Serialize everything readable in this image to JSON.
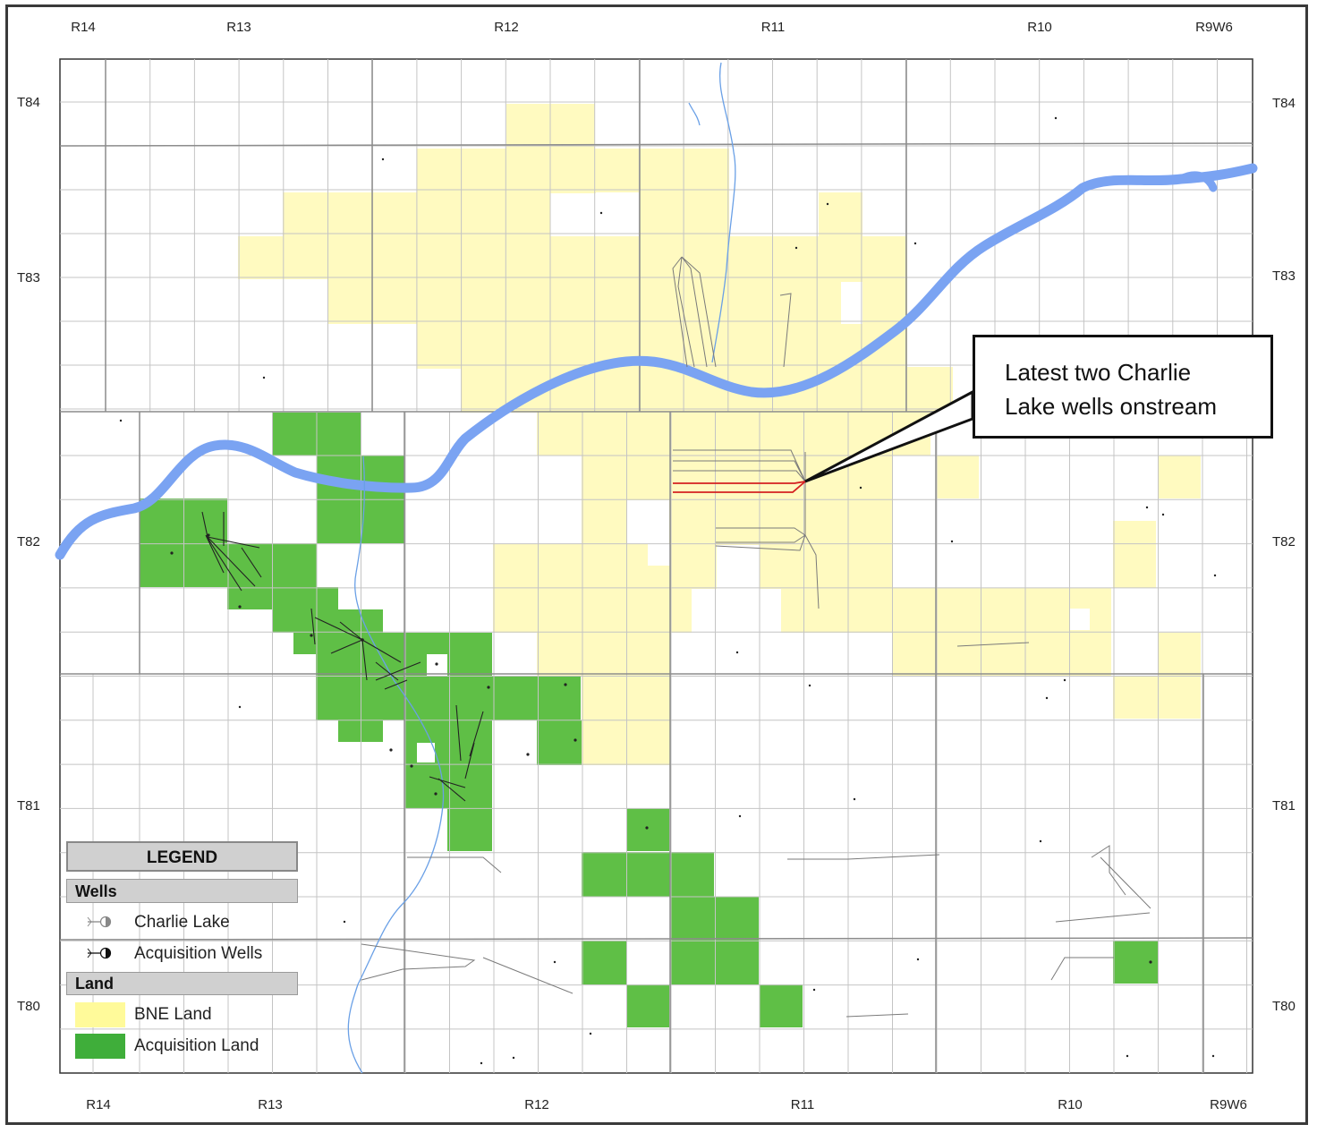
{
  "range_labels_top": [
    "R14",
    "R13",
    "R12",
    "R11",
    "R10",
    "R9W6"
  ],
  "range_labels_bottom": [
    "R14",
    "R13",
    "R12",
    "R11",
    "R10",
    "R9W6"
  ],
  "township_labels_left": [
    "T84",
    "T83",
    "T82",
    "T81",
    "T80"
  ],
  "township_labels_right": [
    "T84",
    "T83",
    "T82",
    "T81",
    "T80"
  ],
  "callout": {
    "line1": "Latest two Charlie",
    "line2": "Lake wells onstream"
  },
  "legend": {
    "title": "LEGEND",
    "wells_header": "Wells",
    "charlie_lake": "Charlie Lake",
    "acquisition_wells": "Acquisition Wells",
    "land_header": "Land",
    "bne_land": "BNE Land",
    "acquisition_land": "Acquisition Land"
  },
  "colors": {
    "bne_land": "#fffac0",
    "acquisition_land": "#5fbf46",
    "river": "#7aa3f2",
    "grid": "#b8b8b8",
    "highlight_well": "#d42020"
  }
}
